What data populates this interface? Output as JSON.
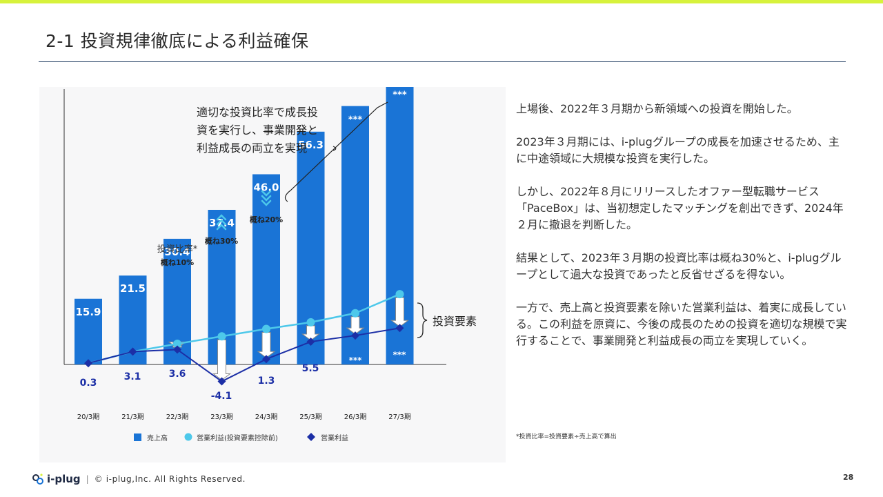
{
  "page": {
    "title": "2-1 投資規律徹底による利益確保",
    "page_number": "28",
    "colors": {
      "accent_bar": "#d7f23c",
      "bar": "#1a74d6",
      "light_line": "#4dc8ea",
      "dark_line": "#1c2fa6"
    }
  },
  "body_text": [
    "上場後、2022年３月期から新領域への投資を開始した。",
    "2023年３月期には、i-plugグループの成長を加速させるため、主に中途領域に大規模な投資を実行した。",
    "しかし、2022年８月にリリースしたオファー型転職サービス「PaceBox」は、当初想定したマッチングを創出できず、2024年２月に撤退を判断した。",
    "結果として、2023年３月期の投資比率は概ね30%と、i-plugグループとして過大な投資であったと反省せざるを得ない。",
    "一方で、売上高と投資要素を除いた営業利益は、着実に成長している。この利益を原資に、今後の成長のための投資を適切な規模で実行することで、事業開発と利益成長の両立を実現していく。"
  ],
  "note": "*投資比率=投資要素÷売上高で算出",
  "footer": {
    "logo": "i-plug",
    "separator": "|",
    "copyright": "© i-plug,Inc. All Rights Reserved."
  },
  "chart_data": {
    "type": "bar",
    "categories": [
      "20/3期",
      "21/3期",
      "22/3期",
      "23/3期",
      "24/3期",
      "25/3期",
      "26/3期",
      "27/3期"
    ],
    "series": [
      {
        "name": "売上高",
        "kind": "bar",
        "values": [
          15.9,
          21.5,
          30.4,
          37.4,
          46.0,
          56.3,
          null,
          null
        ],
        "labels": [
          "15.9",
          "21.5",
          "30.4",
          "37.4",
          "46.0",
          "56.3",
          "***",
          "***"
        ],
        "display_values": [
          15.9,
          21.5,
          30.4,
          37.4,
          46.0,
          56.3,
          62.5,
          68.5
        ]
      },
      {
        "name": "営業利益(投資要素控除前)",
        "kind": "line",
        "values": [
          0.3,
          3.1,
          5.0,
          6.8,
          8.6,
          10.2,
          12.4,
          17.0
        ]
      },
      {
        "name": "営業利益",
        "kind": "line",
        "values": [
          0.3,
          3.1,
          3.6,
          -4.1,
          1.3,
          5.5,
          null,
          null
        ],
        "labels": [
          "0.3",
          "3.1",
          "3.6",
          "-4.1",
          "1.3",
          "5.5",
          "***",
          "***"
        ],
        "display_values": [
          0.3,
          3.1,
          3.6,
          -4.1,
          1.3,
          5.5,
          7.0,
          8.8
        ]
      }
    ],
    "ylim": [
      -6,
      70
    ],
    "annotations": {
      "strategy": [
        "適切な投資比率で成長投",
        "資を実行し、事業開発と",
        "利益成長の両立を実現"
      ],
      "ratio_label": "投資比率*",
      "ratio_10": "概ね10%",
      "ratio_30": "概ね30%",
      "ratio_20": "概ね20%",
      "investment_element": "投資要素"
    }
  }
}
